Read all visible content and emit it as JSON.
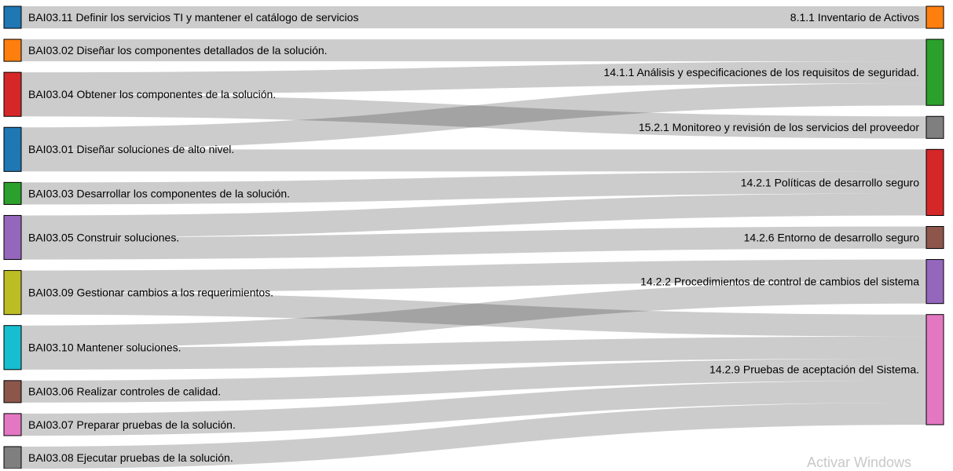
{
  "chart_data": {
    "type": "sankey",
    "sources": [
      {
        "id": "s11",
        "label": "BAI03.11 Definir los servicios TI y mantener el catálogo de servicios",
        "color": "#1f77b4"
      },
      {
        "id": "s02",
        "label": "BAI03.02 Diseñar los componentes detallados de la solución.",
        "color": "#ff7f0e"
      },
      {
        "id": "s04",
        "label": "BAI03.04 Obtener los componentes de la solución.",
        "color": "#d62728"
      },
      {
        "id": "s01",
        "label": "BAI03.01 Diseñar soluciones de alto nivel.",
        "color": "#1f77b4"
      },
      {
        "id": "s03",
        "label": "BAI03.03 Desarrollar los componentes de la solución.",
        "color": "#2ca02c"
      },
      {
        "id": "s05",
        "label": "BAI03.05 Construir soluciones.",
        "color": "#9467bd"
      },
      {
        "id": "s09",
        "label": "BAI03.09 Gestionar cambios a los requerimientos.",
        "color": "#bcbd22"
      },
      {
        "id": "s10",
        "label": "BAI03.10 Mantener soluciones.",
        "color": "#17becf"
      },
      {
        "id": "s06",
        "label": "BAI03.06 Realizar controles de calidad.",
        "color": "#8c564b"
      },
      {
        "id": "s07",
        "label": "BAI03.07 Preparar pruebas de la solución.",
        "color": "#e377c2"
      },
      {
        "id": "s08",
        "label": "BAI03.08 Ejecutar pruebas de la solución.",
        "color": "#7f7f7f"
      }
    ],
    "targets": [
      {
        "id": "t811",
        "label": "8.1.1 Inventario de Activos",
        "color": "#ff7f0e"
      },
      {
        "id": "t1411",
        "label": "14.1.1 Análisis y especificaciones de los requisitos de seguridad.",
        "color": "#2ca02c"
      },
      {
        "id": "t1521",
        "label": "15.2.1 Monitoreo y revisión de los servicios del proveedor",
        "color": "#7f7f7f"
      },
      {
        "id": "t1421",
        "label": "14.2.1 Políticas de desarrollo seguro",
        "color": "#d62728"
      },
      {
        "id": "t1426",
        "label": "14.2.6 Entorno de desarrollo seguro",
        "color": "#8c564b"
      },
      {
        "id": "t1422",
        "label": "14.2.2 Procedimientos de control de cambios del sistema",
        "color": "#9467bd"
      },
      {
        "id": "t1429",
        "label": "14.2.9 Pruebas de aceptación del Sistema.",
        "color": "#e377c2"
      }
    ],
    "links": [
      {
        "source": "s11",
        "target": "t811",
        "value": 1
      },
      {
        "source": "s02",
        "target": "t1411",
        "value": 1
      },
      {
        "source": "s04",
        "target": "t1411",
        "value": 1
      },
      {
        "source": "s04",
        "target": "t1521",
        "value": 1
      },
      {
        "source": "s01",
        "target": "t1411",
        "value": 1
      },
      {
        "source": "s01",
        "target": "t1421",
        "value": 1
      },
      {
        "source": "s03",
        "target": "t1421",
        "value": 1
      },
      {
        "source": "s05",
        "target": "t1421",
        "value": 1
      },
      {
        "source": "s05",
        "target": "t1426",
        "value": 1
      },
      {
        "source": "s09",
        "target": "t1422",
        "value": 1
      },
      {
        "source": "s09",
        "target": "t1429",
        "value": 1
      },
      {
        "source": "s10",
        "target": "t1422",
        "value": 1
      },
      {
        "source": "s10",
        "target": "t1429",
        "value": 1
      },
      {
        "source": "s06",
        "target": "t1429",
        "value": 1
      },
      {
        "source": "s07",
        "target": "t1429",
        "value": 1
      },
      {
        "source": "s08",
        "target": "t1429",
        "value": 1
      }
    ]
  },
  "watermark": "Activar Windows"
}
